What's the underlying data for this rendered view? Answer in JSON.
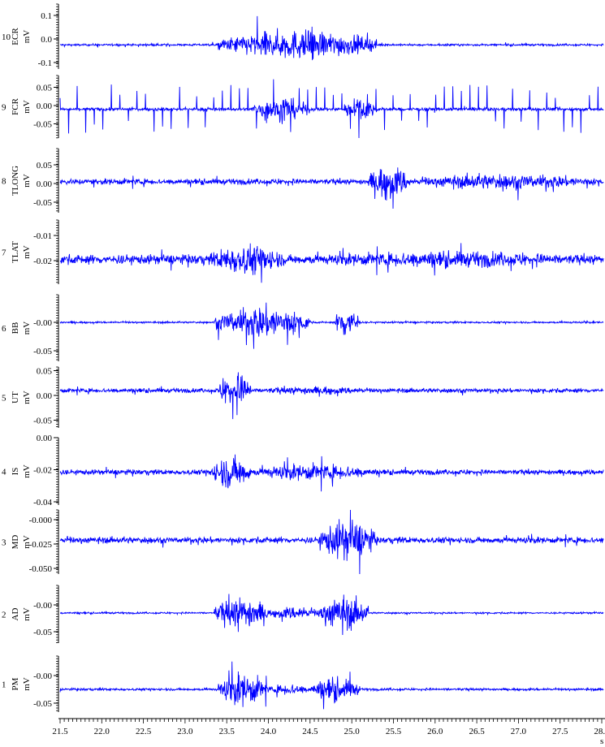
{
  "chart_data": {
    "type": "line",
    "xlabel": "s",
    "xlim": [
      21.5,
      28.02
    ],
    "x_ticks": [
      "21.5",
      "22.0",
      "22.5",
      "23.0",
      "23.5",
      "24.0",
      "24.5",
      "25.0",
      "25.5",
      "26.0",
      "26.5",
      "27.0",
      "27.5",
      "28.0"
    ],
    "line_color": "#0000ff",
    "grid": false,
    "channels": [
      {
        "number": "10",
        "name": "ECR",
        "unit": "mV",
        "ylim": [
          -0.125,
          0.145
        ],
        "ticks": [
          {
            "v": 0.1,
            "l": "0.1"
          },
          {
            "v": 0.0,
            "l": "0.0"
          },
          {
            "v": -0.1,
            "l": "-0.1"
          }
        ],
        "baseline": -0.025,
        "noise": 0.004,
        "spike_period": 0,
        "bursts": [
          [
            23.4,
            25.3,
            0.06
          ]
        ]
      },
      {
        "number": "9",
        "name": "FCR",
        "unit": "mV",
        "ylim": [
          -0.085,
          0.085
        ],
        "ticks": [
          {
            "v": 0.05,
            "l": "0.05"
          },
          {
            "v": 0.0,
            "l": "0.00"
          },
          {
            "v": -0.05,
            "l": "-0.05"
          }
        ],
        "baseline": -0.01,
        "noise": 0.004,
        "spike_period": 0.1,
        "bursts": [
          [
            23.8,
            24.5,
            0.03
          ],
          [
            24.9,
            25.3,
            0.03
          ]
        ]
      },
      {
        "number": "8",
        "name": "TLONG",
        "unit": "mV",
        "ylim": [
          -0.08,
          0.09
        ],
        "ticks": [
          {
            "v": 0.05,
            "l": "0.05"
          },
          {
            "v": 0.0,
            "l": "0.00"
          },
          {
            "v": -0.05,
            "l": "-0.05"
          }
        ],
        "baseline": 0.005,
        "noise": 0.007,
        "spike_period": 0,
        "bursts": [
          [
            25.2,
            25.7,
            0.045
          ],
          [
            25.7,
            28.0,
            0.02
          ],
          [
            21.5,
            23.1,
            0.008
          ]
        ]
      },
      {
        "number": "7",
        "name": "TLAT",
        "unit": "mV",
        "ylim": [
          -0.03,
          -0.004
        ],
        "ticks": [
          {
            "v": -0.01,
            "l": "-0.01"
          },
          {
            "v": -0.02,
            "l": "-0.02"
          }
        ],
        "baseline": -0.0195,
        "noise": 0.0018,
        "spike_period": 0,
        "bursts": [
          [
            23.3,
            24.2,
            0.006
          ],
          [
            24.2,
            28.0,
            0.003
          ]
        ]
      },
      {
        "number": "6",
        "name": "BB",
        "unit": "mV",
        "ylim": [
          -0.065,
          0.055
        ],
        "ticks": [
          {
            "v": 0.0,
            "l": "-0.00"
          },
          {
            "v": -0.05,
            "l": "-0.05"
          }
        ],
        "baseline": 0.0,
        "noise": 0.0015,
        "spike_period": 0,
        "bursts": [
          [
            23.35,
            24.5,
            0.028
          ],
          [
            24.8,
            25.1,
            0.03
          ]
        ]
      },
      {
        "number": "5",
        "name": "UT",
        "unit": "mV",
        "ylim": [
          -0.065,
          0.06
        ],
        "ticks": [
          {
            "v": 0.05,
            "l": "0.05"
          },
          {
            "v": 0.0,
            "l": "0.00"
          },
          {
            "v": -0.05,
            "l": "-0.05"
          }
        ],
        "baseline": 0.01,
        "noise": 0.004,
        "spike_period": 0,
        "bursts": [
          [
            23.4,
            23.8,
            0.035
          ],
          [
            23.8,
            25.3,
            0.008
          ]
        ]
      },
      {
        "number": "4",
        "name": "IS",
        "unit": "mV",
        "ylim": [
          -0.042,
          0.0
        ],
        "ticks": [
          {
            "v": 0.0,
            "l": "0.00"
          },
          {
            "v": -0.02,
            "l": "-0.02"
          },
          {
            "v": -0.04,
            "l": "-0.04"
          }
        ],
        "baseline": -0.0215,
        "noise": 0.0015,
        "spike_period": 0,
        "bursts": [
          [
            23.3,
            23.8,
            0.01
          ],
          [
            23.8,
            25.3,
            0.005
          ]
        ]
      },
      {
        "number": "3",
        "name": "MD",
        "unit": "mV",
        "ylim": [
          -0.055,
          0.01
        ],
        "ticks": [
          {
            "v": 0.0,
            "l": "-0.000"
          },
          {
            "v": -0.025,
            "l": "-0.025"
          },
          {
            "v": -0.05,
            "l": "-0.050"
          }
        ],
        "baseline": -0.021,
        "noise": 0.003,
        "spike_period": 0,
        "bursts": [
          [
            24.6,
            25.3,
            0.02
          ]
        ]
      },
      {
        "number": "2",
        "name": "AD",
        "unit": "mV",
        "ylim": [
          -0.07,
          0.035
        ],
        "ticks": [
          {
            "v": 0.0,
            "l": "-0.00"
          },
          {
            "v": -0.05,
            "l": "-0.05"
          }
        ],
        "baseline": -0.015,
        "noise": 0.0015,
        "spike_period": 0,
        "bursts": [
          [
            23.35,
            24.0,
            0.03
          ],
          [
            24.0,
            24.6,
            0.012
          ],
          [
            24.6,
            25.2,
            0.03
          ]
        ]
      },
      {
        "number": "1",
        "name": "PM",
        "unit": "mV",
        "ylim": [
          -0.065,
          0.04
        ],
        "ticks": [
          {
            "v": 0.0,
            "l": "-0.00"
          },
          {
            "v": -0.05,
            "l": "-0.05"
          }
        ],
        "baseline": -0.025,
        "noise": 0.002,
        "spike_period": 0,
        "bursts": [
          [
            23.4,
            24.0,
            0.028
          ],
          [
            24.0,
            24.5,
            0.01
          ],
          [
            24.5,
            25.1,
            0.02
          ]
        ]
      }
    ]
  }
}
